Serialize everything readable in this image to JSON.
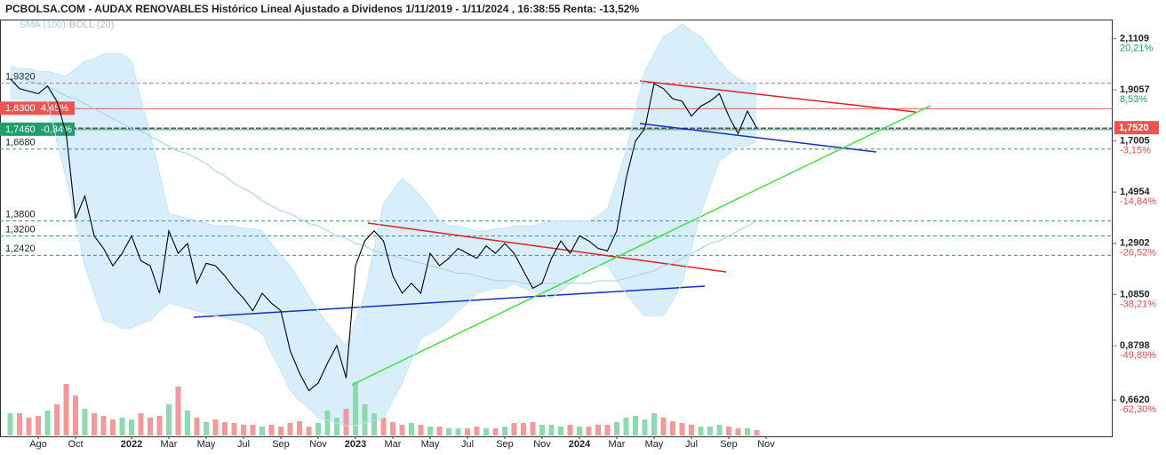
{
  "chart_data": {
    "type": "line",
    "title": "PCBOLSA.COM - AUDAX RENOVABLES Histórico Lineal Ajustado a Dividenos 1/11/2019 - 1/11/2024 , 16:38:55 Renta: -13,52%",
    "categories": [
      null,
      null,
      null,
      "Ago",
      null,
      null,
      null,
      "Oct",
      null,
      null,
      null,
      null,
      null,
      "2022",
      null,
      null,
      null,
      "Mar",
      null,
      null,
      null,
      "May",
      null,
      null,
      null,
      "Jul",
      null,
      null,
      null,
      "Sep",
      null,
      null,
      null,
      "Nov",
      null,
      null,
      null,
      "2023",
      null,
      null,
      null,
      "Mar",
      null,
      null,
      null,
      "May",
      null,
      null,
      null,
      "Jul",
      null,
      null,
      null,
      "Sep",
      null,
      null,
      null,
      "Nov",
      null,
      null,
      null,
      "2024",
      null,
      null,
      null,
      "Mar",
      null,
      null,
      null,
      "May",
      null,
      null,
      null,
      "Jul",
      null,
      null,
      null,
      "Sep",
      null,
      null,
      null,
      "Nov"
    ],
    "series": [
      {
        "name": "SMA (100)",
        "color": "#9fd0ee",
        "values": [
          1.97,
          1.96,
          1.94,
          1.93,
          1.92,
          1.9,
          1.88,
          1.87,
          1.85,
          1.83,
          1.81,
          1.79,
          1.77,
          1.75,
          1.74,
          1.72,
          1.7,
          1.68,
          1.66,
          1.65,
          1.63,
          1.61,
          1.58,
          1.56,
          1.53,
          1.51,
          1.49,
          1.46,
          1.44,
          1.42,
          1.41,
          1.39,
          1.37,
          1.36,
          1.34,
          1.32,
          1.31,
          1.29,
          1.28,
          1.26,
          1.25,
          1.24,
          1.23,
          1.22,
          1.21,
          1.2,
          1.19,
          1.18,
          1.17,
          1.17,
          1.16,
          1.15,
          1.14,
          1.14,
          1.14,
          1.13,
          1.13,
          1.13,
          1.13,
          1.13,
          1.13,
          1.13,
          1.13,
          1.14,
          1.14,
          1.14,
          1.15,
          1.16,
          1.17,
          1.18,
          1.2,
          1.21,
          1.23,
          1.25,
          1.27,
          1.29,
          1.3,
          1.32,
          1.34,
          1.36,
          1.38,
          null
        ]
      },
      {
        "name": "BOLL (20)",
        "color": "#bbbbbb",
        "fill": "#d9eefb",
        "upper": [
          2.0,
          1.99,
          1.99,
          1.98,
          1.98,
          1.97,
          1.96,
          1.99,
          2.02,
          2.03,
          2.05,
          2.05,
          2.05,
          2.02,
          1.87,
          1.73,
          1.57,
          1.41,
          1.4,
          1.39,
          1.38,
          1.37,
          1.36,
          1.36,
          1.36,
          1.35,
          1.35,
          1.34,
          1.29,
          1.24,
          1.2,
          1.14,
          1.08,
          1.02,
          0.97,
          0.92,
          0.88,
          0.98,
          1.09,
          1.27,
          1.45,
          1.5,
          1.55,
          1.52,
          1.48,
          1.43,
          1.38,
          1.36,
          1.36,
          1.35,
          1.34,
          1.34,
          1.35,
          1.35,
          1.36,
          1.36,
          1.36,
          1.37,
          1.38,
          1.38,
          1.38,
          1.38,
          1.38,
          1.4,
          1.43,
          1.54,
          1.66,
          1.82,
          1.98,
          2.05,
          2.12,
          2.14,
          2.17,
          2.14,
          2.12,
          2.07,
          2.02,
          1.98,
          1.95,
          1.93,
          1.93,
          null
        ],
        "lower": [
          1.87,
          1.87,
          1.86,
          1.86,
          1.86,
          1.7,
          1.55,
          1.38,
          1.2,
          1.09,
          0.98,
          0.97,
          0.95,
          0.95,
          0.97,
          0.98,
          1.02,
          1.05,
          1.04,
          1.03,
          1.02,
          1.01,
          1.0,
          0.99,
          0.98,
          0.97,
          0.95,
          0.93,
          0.85,
          0.78,
          0.7,
          0.66,
          0.63,
          0.59,
          0.58,
          0.57,
          0.56,
          0.56,
          0.57,
          0.58,
          0.59,
          0.66,
          0.73,
          0.82,
          0.91,
          0.93,
          0.95,
          0.98,
          1.02,
          1.05,
          1.09,
          1.1,
          1.11,
          1.11,
          1.13,
          1.11,
          1.1,
          1.09,
          1.07,
          1.1,
          1.13,
          1.16,
          1.2,
          1.2,
          1.2,
          1.14,
          1.09,
          1.04,
          1.0,
          1.0,
          1.0,
          1.06,
          1.13,
          1.27,
          1.41,
          1.52,
          1.62,
          1.65,
          1.68,
          1.68,
          1.7,
          null
        ]
      },
      {
        "color": "#000000",
        "values": [
          1.95,
          1.91,
          1.9,
          1.89,
          1.92,
          1.86,
          1.73,
          1.39,
          1.48,
          1.32,
          1.27,
          1.2,
          1.25,
          1.32,
          1.22,
          1.2,
          1.09,
          1.34,
          1.25,
          1.29,
          1.13,
          1.21,
          1.2,
          1.16,
          1.11,
          1.07,
          1.02,
          1.09,
          1.05,
          1.02,
          0.86,
          0.77,
          0.7,
          0.73,
          0.81,
          0.88,
          0.75,
          1.2,
          1.3,
          1.34,
          1.3,
          1.16,
          1.09,
          1.13,
          1.09,
          1.25,
          1.2,
          1.23,
          1.27,
          1.25,
          1.23,
          1.28,
          1.25,
          1.29,
          1.25,
          1.18,
          1.11,
          1.13,
          1.23,
          1.3,
          1.25,
          1.32,
          1.3,
          1.27,
          1.26,
          1.34,
          1.55,
          1.7,
          1.75,
          1.93,
          1.91,
          1.87,
          1.86,
          1.8,
          1.84,
          1.86,
          1.89,
          1.8,
          1.73,
          1.82,
          1.752,
          null
        ]
      }
    ],
    "volume": {
      "up_color": "#8fd8b0",
      "down_color": "#f09a9a",
      "vlim": [
        0,
        60
      ],
      "values": [
        25,
        25,
        20,
        22,
        28,
        35,
        58,
        45,
        30,
        25,
        22,
        18,
        20,
        18,
        25,
        20,
        22,
        35,
        55,
        28,
        20,
        15,
        18,
        15,
        14,
        12,
        12,
        10,
        12,
        10,
        14,
        16,
        10,
        14,
        28,
        20,
        30,
        60,
        35,
        25,
        20,
        15,
        12,
        14,
        12,
        10,
        10,
        8,
        8,
        8,
        10,
        8,
        8,
        10,
        14,
        14,
        15,
        12,
        12,
        10,
        12,
        10,
        10,
        12,
        12,
        15,
        20,
        22,
        18,
        25,
        20,
        16,
        14,
        12,
        10,
        10,
        12,
        10,
        8,
        8,
        6,
        null
      ]
    },
    "ylim": [
      0.52,
      2.23
    ],
    "yticks": [
      {
        "value": 2.1109,
        "label": "2,1109"
      },
      {
        "value": 1.9057,
        "label": "1,9057"
      },
      {
        "value": 1.7005,
        "label": "1,7005"
      },
      {
        "value": 1.4954,
        "label": "1,4954"
      },
      {
        "value": 1.2902,
        "label": "1,2902"
      },
      {
        "value": 1.085,
        "label": "1,0850"
      },
      {
        "value": 0.8798,
        "label": "0,8798"
      },
      {
        "value": 0.662,
        "label": "0,6620"
      }
    ],
    "y2lim": [
      -70.39,
      26.99
    ],
    "y2ticks": [
      {
        "value": 20.21,
        "label": "20,21%"
      },
      {
        "value": 8.53,
        "label": "8,53%"
      },
      {
        "value": -3.15,
        "label": "-3,15%"
      },
      {
        "value": -14.84,
        "label": "-14,84%"
      },
      {
        "value": -26.52,
        "label": "-26,52%"
      },
      {
        "value": -38.21,
        "label": "-38,21%"
      },
      {
        "value": -49.89,
        "label": "-49,89%"
      },
      {
        "value": -62.3,
        "label": "-62,30%"
      }
    ],
    "y2_colors": {
      "positive": "#1f9e6e",
      "negative": "#e0504a"
    },
    "levels": [
      {
        "value": 1.932,
        "label": "1,9320",
        "color": "#e06666"
      },
      {
        "value": 1.83,
        "label": "1,8300",
        "change": "4,45%",
        "color": "#ef5350"
      },
      {
        "value": 1.746,
        "label": "1,7460",
        "change": "-0,34%",
        "color": "#1f9e6e"
      },
      {
        "value": 1.668,
        "label": "1,6680",
        "color": "#3f8f8f"
      },
      {
        "value": 1.38,
        "label": "1,3800",
        "color": "#3f8f8f"
      },
      {
        "value": 1.32,
        "label": "1,3200",
        "color": "#3f8f8f"
      },
      {
        "value": 1.242,
        "label": "1,2420",
        "color": "#3f8f8f"
      }
    ],
    "last": {
      "value": 1.752,
      "label": "1,7520",
      "color": "#ef5350"
    }
  }
}
